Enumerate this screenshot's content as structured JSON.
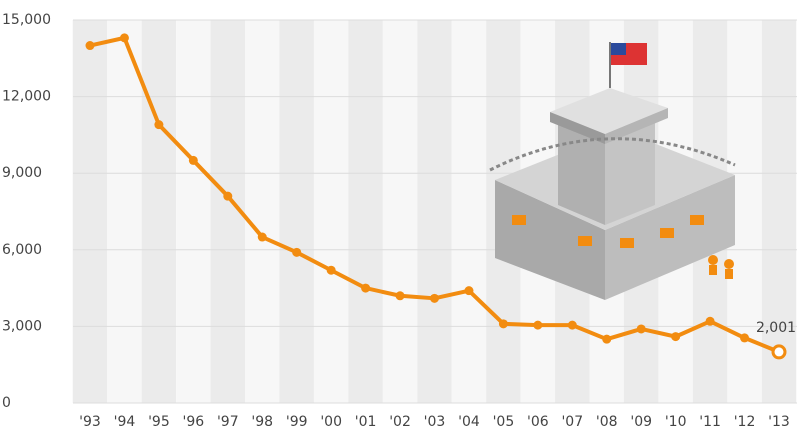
{
  "chart_data": {
    "type": "line",
    "categories": [
      "'93",
      "'94",
      "'95",
      "'96",
      "'97",
      "'98",
      "'99",
      "'00",
      "'01",
      "'02",
      "'03",
      "'04",
      "'05",
      "'06",
      "'07",
      "'08",
      "'09",
      "'10",
      "'11",
      "'12",
      "'13"
    ],
    "series": [
      {
        "color": "#f28c10",
        "values": [
          14000,
          14300,
          10900,
          9500,
          8100,
          6500,
          5900,
          5200,
          4500,
          4200,
          4100,
          4400,
          3100,
          3050,
          3050,
          2500,
          2900,
          2600,
          3200,
          2550,
          2001
        ],
        "value_labels": [
          null,
          null,
          null,
          null,
          null,
          null,
          null,
          null,
          null,
          null,
          null,
          null,
          null,
          null,
          null,
          null,
          null,
          null,
          null,
          null,
          "2,001"
        ]
      }
    ],
    "ylim": [
      0,
      15000
    ],
    "yticks": [
      0,
      {
        "value": 3000,
        "label": "3,000"
      },
      {
        "value": 6000,
        "label": "6,000"
      },
      {
        "value": 9000,
        "label": "9,000"
      },
      {
        "value": 12000,
        "label": "12,000"
      },
      {
        "value": 15000,
        "label": "15,000"
      }
    ],
    "grid": true
  }
}
